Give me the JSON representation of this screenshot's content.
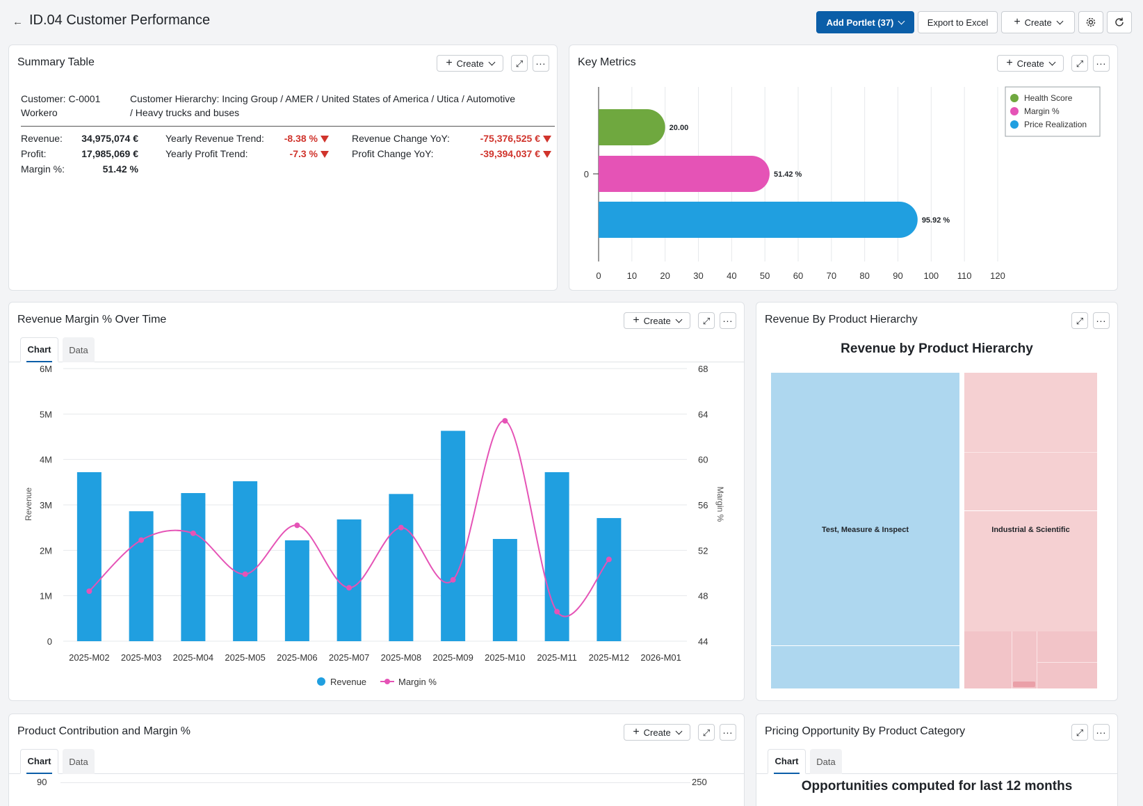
{
  "header": {
    "title": "ID.04 Customer Performance",
    "add_portlet_label": "Add Portlet (37)",
    "export_label": "Export to Excel",
    "create_label": "Create"
  },
  "common": {
    "create_label": "Create"
  },
  "summary": {
    "title": "Summary Table",
    "customer": "Customer: C-0001",
    "customer_name": "Workero",
    "hierarchy_line1": "Customer Hierarchy: Incing Group / AMER / United States of America / Utica / Automotive",
    "hierarchy_line2": "/ Heavy trucks and buses",
    "revenue_label": "Revenue:",
    "revenue_value": "34,975,074 €",
    "profit_label": "Profit:",
    "profit_value": "17,985,069 €",
    "margin_label": "Margin %:",
    "margin_value": "51.42 %",
    "yrt_label": "Yearly Revenue Trend:",
    "yrt_value": "-8.38 %",
    "ypt_label": "Yearly Profit Trend:",
    "ypt_value": "-7.3 %",
    "rcy_label": "Revenue Change YoY:",
    "rcy_value": "-75,376,525 €",
    "pcy_label": "Profit Change YoY:",
    "pcy_value": "-39,394,037 €",
    "negative_color": "#d0342c"
  },
  "key_metrics": {
    "title": "Key Metrics",
    "chart_data": {
      "type": "bar",
      "orientation": "horizontal",
      "category": "0",
      "series": [
        {
          "name": "Health Score",
          "value": 20.0,
          "label": "20.00",
          "color": "#6fa83f"
        },
        {
          "name": "Margin %",
          "value": 51.42,
          "label": "51.42 %",
          "color": "#e553b6"
        },
        {
          "name": "Price Realization",
          "value": 95.92,
          "label": "95.92 %",
          "color": "#209fe0"
        }
      ],
      "xticks": [
        "0",
        "10",
        "20",
        "30",
        "40",
        "50",
        "60",
        "70",
        "80",
        "90",
        "100",
        "110",
        "120"
      ],
      "xlim": [
        0,
        120
      ],
      "legend": "top-right",
      "grid": true
    }
  },
  "revenue_margin": {
    "title": "Revenue Margin % Over Time",
    "tab_chart": "Chart",
    "tab_data": "Data",
    "chart_data": {
      "type": "bar",
      "categories": [
        "2025-M02",
        "2025-M03",
        "2025-M04",
        "2025-M05",
        "2025-M06",
        "2025-M07",
        "2025-M08",
        "2025-M09",
        "2025-M10",
        "2025-M11",
        "2025-M12",
        "2026-M01"
      ],
      "series": [
        {
          "name": "Revenue",
          "type": "bar",
          "axis": "left",
          "color": "#209fe0",
          "values": [
            3720000,
            2860000,
            3260000,
            3520000,
            2220000,
            2680000,
            3240000,
            4630000,
            2250000,
            3720000,
            2710000,
            null
          ]
        },
        {
          "name": "Margin %",
          "type": "line",
          "axis": "right",
          "color": "#e553b6",
          "values": [
            48.4,
            52.9,
            53.5,
            49.9,
            54.2,
            48.7,
            54.0,
            49.4,
            63.4,
            46.6,
            51.2,
            null
          ]
        }
      ],
      "ylabel": "Revenue",
      "y2label": "Margin %",
      "yticks": [
        "0",
        "1M",
        "2M",
        "3M",
        "4M",
        "5M",
        "6M"
      ],
      "ylim": [
        0,
        6000000
      ],
      "y2ticks": [
        "44",
        "48",
        "52",
        "56",
        "60",
        "64",
        "68"
      ],
      "y2lim": [
        44,
        68
      ],
      "legend": "bottom",
      "grid": true
    }
  },
  "product_hierarchy": {
    "title": "Revenue By Product Hierarchy",
    "chart_data": {
      "type": "treemap",
      "title": "Revenue by Product Hierarchy",
      "nodes": [
        {
          "name": "Test, Measure & Inspect",
          "color": "#aed7ef"
        },
        {
          "name": "Industrial & Scientific",
          "color": "#f5d0d2"
        }
      ]
    }
  },
  "product_contribution": {
    "title": "Product Contribution and Margin %",
    "tab_chart": "Chart",
    "tab_data": "Data",
    "y_top": "90",
    "y2_top": "250"
  },
  "pricing_opportunity": {
    "title": "Pricing Opportunity By Product Category",
    "tab_chart": "Chart",
    "tab_data": "Data",
    "subtitle": "Opportunities computed for last 12 months"
  }
}
